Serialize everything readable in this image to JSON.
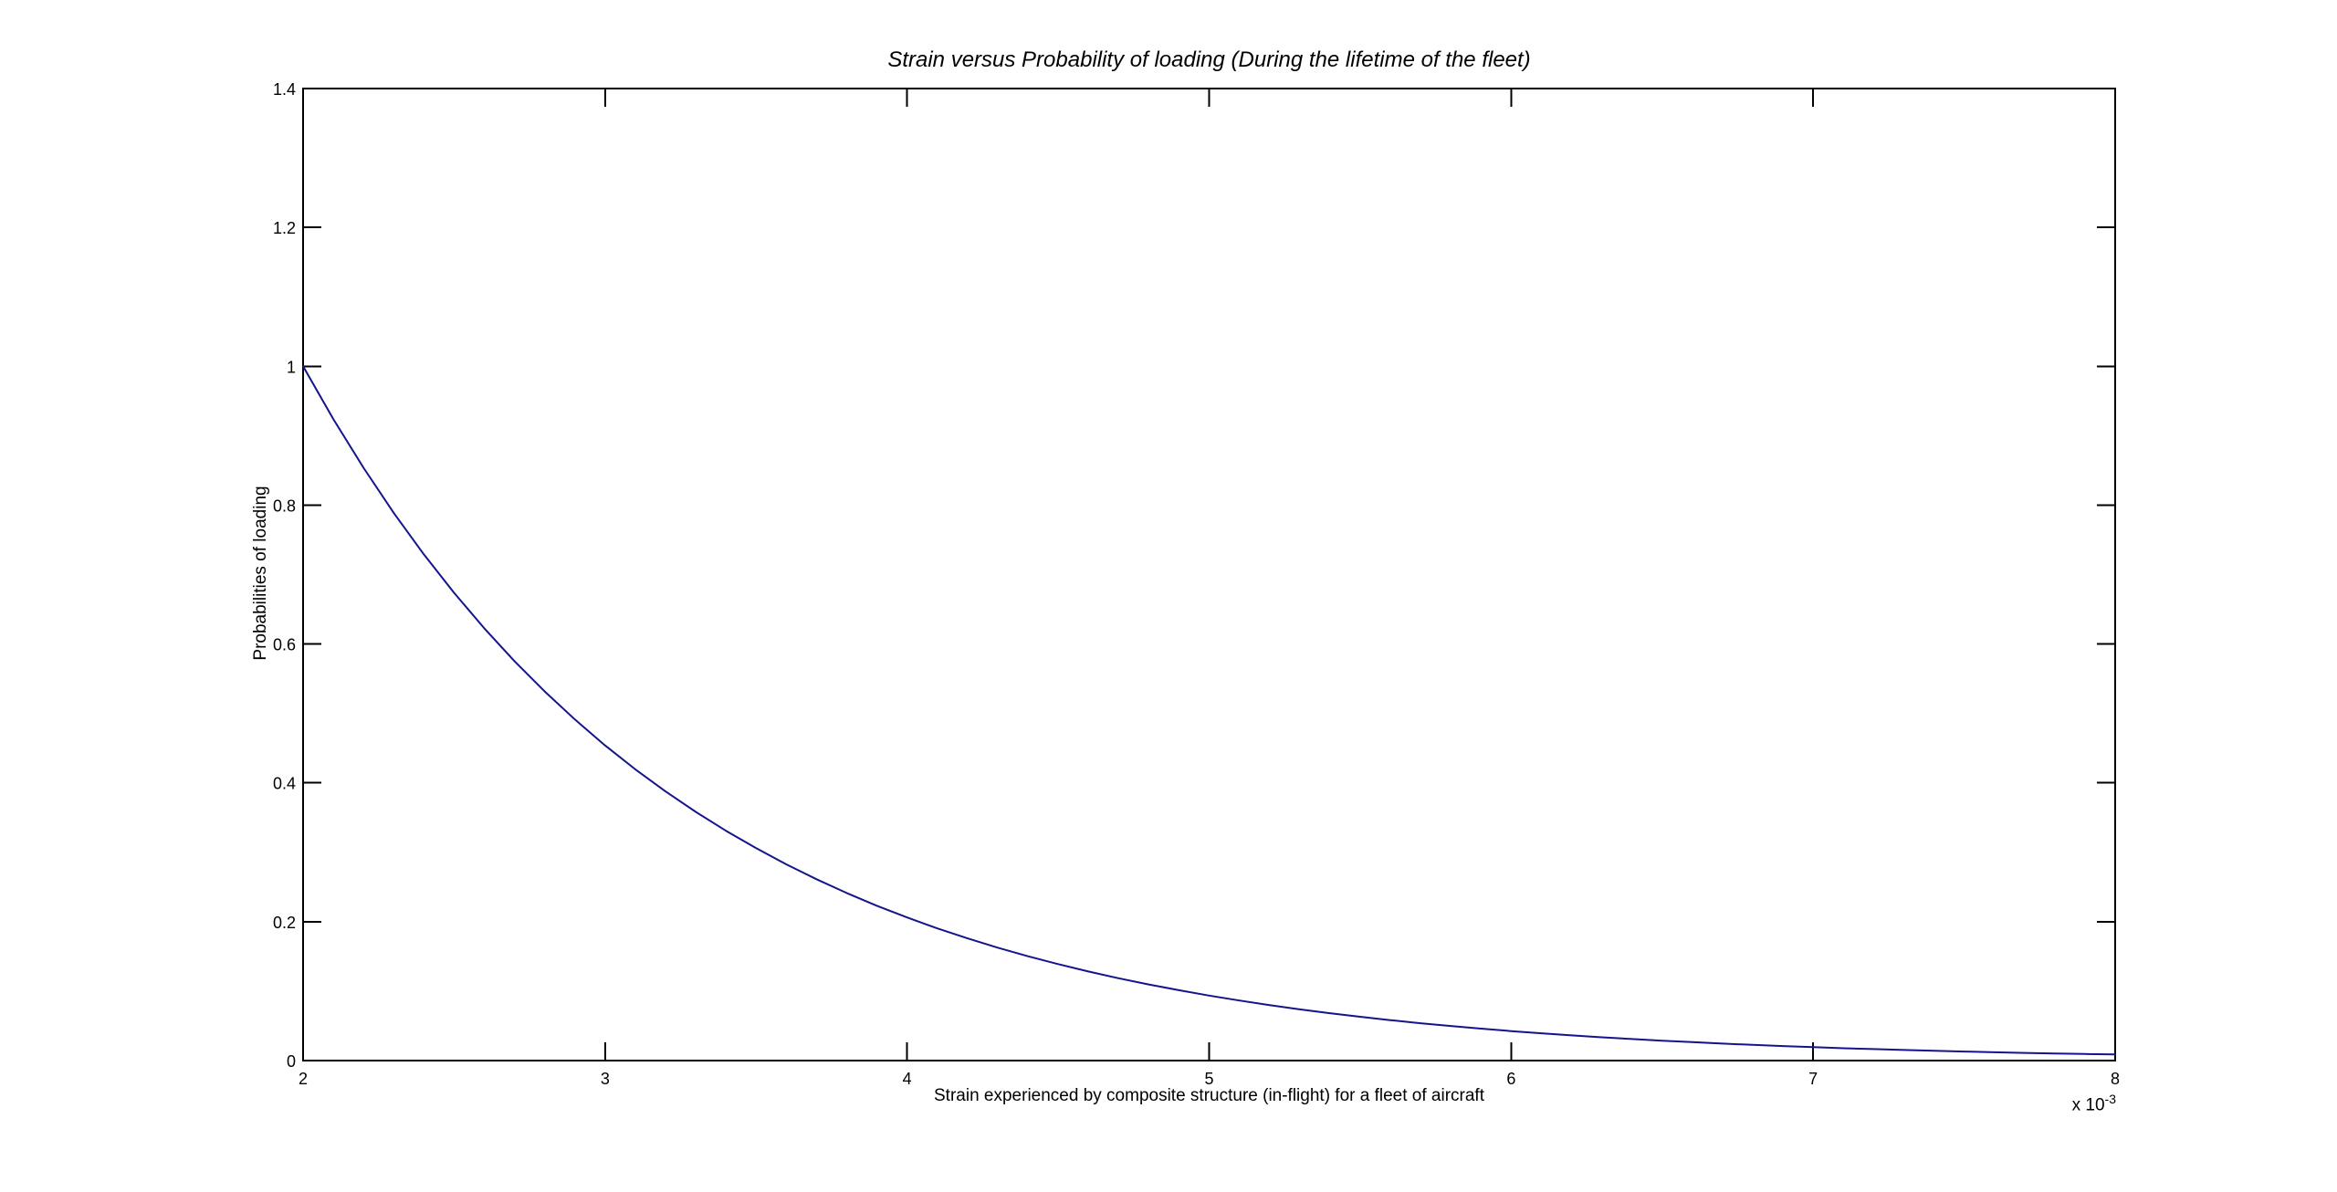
{
  "figure": {
    "title": "Strain versus Probability of loading (During the lifetime of the fleet)",
    "xlabel": "Strain experienced by composite structure (in-flight) for a fleet of aircraft",
    "ylabel": "Probabilities of loading",
    "x_multiplier": {
      "base": "x 10",
      "exponent": "-3"
    },
    "colors": {
      "curve": "#14148C",
      "axis": "#000000",
      "background": "#FFFFFF",
      "text": "#000000"
    }
  },
  "chart_data": {
    "type": "line",
    "title": "Strain versus Probability of loading (During the lifetime of the fleet)",
    "xlabel": "Strain experienced by composite structure (in-flight) for a fleet of aircraft",
    "ylabel": "Probabilities of loading",
    "x_unit_note": "x-axis values are in units of 10^-3 strain",
    "xlim": [
      2,
      8
    ],
    "ylim": [
      0,
      1.4
    ],
    "xticks": [
      2,
      3,
      4,
      5,
      6,
      7,
      8
    ],
    "xtick_labels": [
      "2",
      "3",
      "4",
      "5",
      "6",
      "7",
      "8"
    ],
    "yticks": [
      0,
      0.2,
      0.4,
      0.6,
      0.8,
      1.0,
      1.2,
      1.4
    ],
    "ytick_labels": [
      "0",
      "0.2",
      "0.4",
      "0.6",
      "0.8",
      "1",
      "1.2",
      "1.4"
    ],
    "grid": false,
    "legend": null,
    "series": [
      {
        "name": "Probability of loading",
        "x": [
          2.0,
          2.1,
          2.2,
          2.3,
          2.4,
          2.5,
          2.6,
          2.7,
          2.8,
          2.9,
          3.0,
          3.1,
          3.2,
          3.3,
          3.4,
          3.5,
          3.6,
          3.7,
          3.8,
          3.9,
          4.0,
          4.1,
          4.2,
          4.3,
          4.4,
          4.5,
          4.6,
          4.7,
          4.8,
          4.9,
          5.0,
          5.1,
          5.2,
          5.3,
          5.4,
          5.5,
          5.6,
          5.7,
          5.8,
          5.9,
          6.0,
          6.1,
          6.2,
          6.3,
          6.4,
          6.5,
          6.6,
          6.7,
          6.8,
          6.9,
          7.0,
          7.1,
          7.2,
          7.3,
          7.4,
          7.5,
          7.6,
          7.7,
          7.8,
          7.9,
          8.0
        ],
        "y": [
          1.0,
          0.924,
          0.8538,
          0.789,
          0.7291,
          0.6737,
          0.6226,
          0.5753,
          0.5316,
          0.4912,
          0.4539,
          0.4195,
          0.3876,
          0.3582,
          0.331,
          0.3059,
          0.2826,
          0.2612,
          0.2413,
          0.223,
          0.2061,
          0.1904,
          0.176,
          0.1626,
          0.1503,
          0.1389,
          0.1283,
          0.1186,
          0.1096,
          0.1013,
          0.0936,
          0.0865,
          0.0799,
          0.0738,
          0.0682,
          0.0631,
          0.0583,
          0.0538,
          0.0498,
          0.046,
          0.0425,
          0.0393,
          0.0363,
          0.0335,
          0.031,
          0.0286,
          0.0265,
          0.0245,
          0.0226,
          0.0209,
          0.0193,
          0.0178,
          0.0165,
          0.0152,
          0.0141,
          0.013,
          0.012,
          0.0111,
          0.0103,
          0.0095,
          0.0088
        ]
      }
    ]
  }
}
